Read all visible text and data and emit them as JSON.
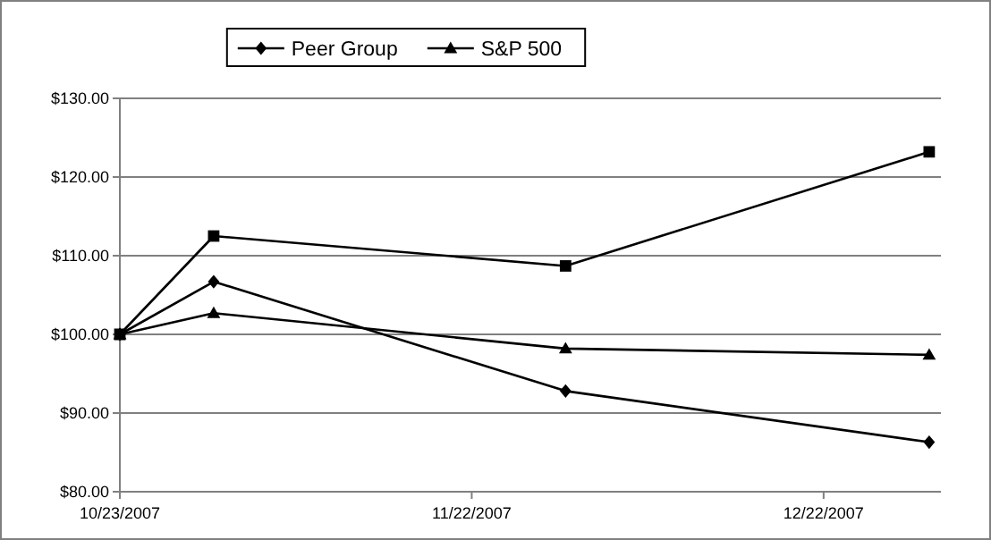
{
  "chart_data": {
    "type": "line",
    "x": [
      "2007-10-23",
      "2007-10-31",
      "2007-11-30",
      "2007-12-31"
    ],
    "series": [
      {
        "name": "Peer Group",
        "color": "#000000",
        "marker": "diamond",
        "values": [
          100,
          106.7,
          92.8,
          86.3
        ]
      },
      {
        "color": "#000000",
        "marker": "square",
        "values": [
          100,
          112.5,
          108.7,
          123.2
        ]
      },
      {
        "name": "S&P 500",
        "color": "#000000",
        "marker": "triangle",
        "values": [
          100,
          102.7,
          98.2,
          97.4
        ]
      }
    ],
    "xlim": [
      "2007-10-23",
      "2008-01-01"
    ],
    "xticks": [
      {
        "value": "2007-10-23",
        "label": "10/23/2007"
      },
      {
        "value": "2007-11-22",
        "label": "11/22/2007"
      },
      {
        "value": "2007-12-22",
        "label": "12/22/2007"
      }
    ],
    "ylim": [
      80,
      130
    ],
    "yticks": [
      {
        "value": 80,
        "label": "$80.00"
      },
      {
        "value": 90,
        "label": "$90.00"
      },
      {
        "value": 100,
        "label": "$100.00"
      },
      {
        "value": 110,
        "label": "$110.00"
      },
      {
        "value": 120,
        "label": "$120.00"
      },
      {
        "value": 130,
        "label": "$130.00"
      }
    ],
    "grid": "y",
    "legend": "top",
    "line_style": "solid"
  }
}
